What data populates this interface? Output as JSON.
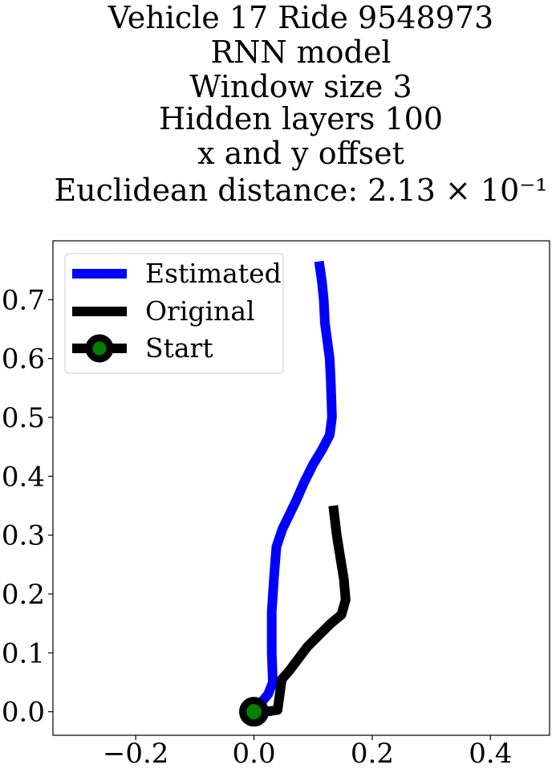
{
  "chart_data": {
    "type": "line",
    "title_lines": [
      "Vehicle 17 Ride 9548973",
      "RNN model",
      "Window size 3",
      "Hidden layers 100",
      "x and y offset",
      "Euclidean distance: 2.13 × 10⁻¹"
    ],
    "xlabel": "",
    "ylabel": "",
    "xlim": [
      -0.34,
      0.5
    ],
    "ylim": [
      -0.04,
      0.8
    ],
    "xticks": [
      -0.2,
      0.0,
      0.2,
      0.4
    ],
    "xtick_labels": [
      "−0.2",
      "0.0",
      "0.2",
      "0.4"
    ],
    "yticks": [
      0.0,
      0.1,
      0.2,
      0.3,
      0.4,
      0.5,
      0.6,
      0.7
    ],
    "ytick_labels": [
      "0.0",
      "0.1",
      "0.2",
      "0.3",
      "0.4",
      "0.5",
      "0.6",
      "0.7"
    ],
    "grid": false,
    "legend_position": "upper-left",
    "series": [
      {
        "name": "Estimated",
        "color": "#0000ff",
        "points": [
          [
            0.0,
            0.0
          ],
          [
            0.012,
            0.015
          ],
          [
            0.024,
            0.03
          ],
          [
            0.032,
            0.05
          ],
          [
            0.03,
            0.1
          ],
          [
            0.03,
            0.17
          ],
          [
            0.034,
            0.23
          ],
          [
            0.038,
            0.28
          ],
          [
            0.048,
            0.31
          ],
          [
            0.06,
            0.335
          ],
          [
            0.072,
            0.36
          ],
          [
            0.085,
            0.39
          ],
          [
            0.1,
            0.42
          ],
          [
            0.115,
            0.445
          ],
          [
            0.128,
            0.47
          ],
          [
            0.132,
            0.5
          ],
          [
            0.13,
            0.56
          ],
          [
            0.128,
            0.6
          ],
          [
            0.12,
            0.66
          ],
          [
            0.118,
            0.7
          ],
          [
            0.115,
            0.73
          ],
          [
            0.11,
            0.765
          ]
        ]
      },
      {
        "name": "Original",
        "color": "#000000",
        "points": [
          [
            0.0,
            0.0
          ],
          [
            0.02,
            0.0
          ],
          [
            0.04,
            0.003
          ],
          [
            0.043,
            0.025
          ],
          [
            0.047,
            0.055
          ],
          [
            0.06,
            0.07
          ],
          [
            0.075,
            0.09
          ],
          [
            0.09,
            0.11
          ],
          [
            0.11,
            0.13
          ],
          [
            0.13,
            0.15
          ],
          [
            0.148,
            0.165
          ],
          [
            0.155,
            0.19
          ],
          [
            0.152,
            0.225
          ],
          [
            0.148,
            0.25
          ],
          [
            0.14,
            0.3
          ],
          [
            0.134,
            0.35
          ]
        ]
      }
    ],
    "start": {
      "name": "Start",
      "x": 0.0,
      "y": 0.0,
      "marker_edge_color": "#000000",
      "marker_face_color": "#008000"
    }
  }
}
